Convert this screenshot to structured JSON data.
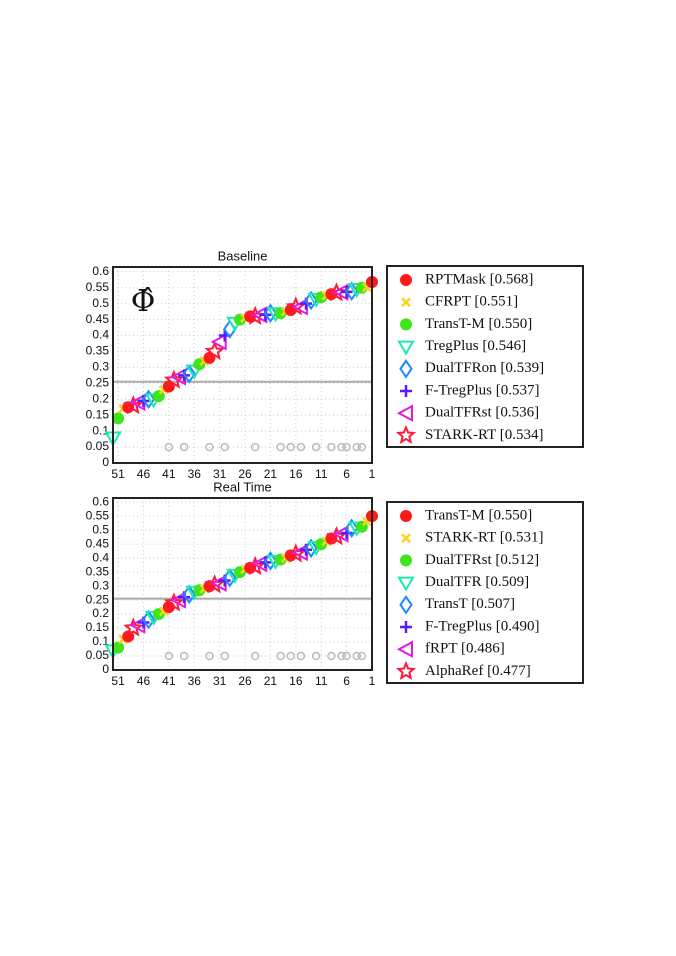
{
  "chart_data": [
    {
      "type": "scatter",
      "title": "Baseline",
      "annotation": "Φ̂",
      "x": [
        52,
        51,
        50,
        49,
        48,
        47,
        46,
        45,
        44,
        43,
        42,
        41,
        40,
        39,
        38,
        37,
        36,
        35,
        34,
        33,
        32,
        31,
        30,
        29,
        28,
        27,
        26,
        25,
        24,
        23,
        22,
        21,
        20,
        19,
        18,
        17,
        16,
        15,
        14,
        13,
        12,
        11,
        10,
        9,
        8,
        7,
        6,
        5,
        4,
        3,
        2,
        1
      ],
      "values": [
        0.08,
        0.14,
        0.17,
        0.175,
        0.18,
        0.19,
        0.195,
        0.2,
        0.2,
        0.21,
        0.23,
        0.24,
        0.26,
        0.27,
        0.275,
        0.28,
        0.29,
        0.31,
        0.32,
        0.33,
        0.35,
        0.38,
        0.4,
        0.42,
        0.44,
        0.45,
        0.455,
        0.46,
        0.46,
        0.465,
        0.465,
        0.47,
        0.47,
        0.47,
        0.475,
        0.48,
        0.49,
        0.49,
        0.5,
        0.51,
        0.515,
        0.52,
        0.525,
        0.53,
        0.534,
        0.536,
        0.537,
        0.539,
        0.546,
        0.55,
        0.551,
        0.568
      ],
      "colors": [
        "#ff1a1a",
        "#ffd21a",
        "#3de61a",
        "#1aeab0",
        "#1a8cff",
        "#5a1aff",
        "#e01ae0",
        "#ff1a3a"
      ],
      "legend": [
        {
          "name": "RPTMask [0.568]"
        },
        {
          "name": "CFRPT [0.551]"
        },
        {
          "name": "TransT-M [0.550]"
        },
        {
          "name": "TregPlus [0.546]"
        },
        {
          "name": "DualTFRon [0.539]"
        },
        {
          "name": "F-TregPlus [0.537]"
        },
        {
          "name": "DualTFRst [0.536]"
        },
        {
          "name": "STARK-RT [0.534]"
        }
      ],
      "threshold": 0.255,
      "gray_points": {
        "x": [
          41,
          38,
          33,
          30,
          24,
          19,
          17,
          15,
          12,
          9,
          7,
          6,
          4,
          3
        ],
        "values": [
          0.05,
          0.05,
          0.05,
          0.05,
          0.05,
          0.05,
          0.05,
          0.05,
          0.05,
          0.05,
          0.05,
          0.05,
          0.05,
          0.05
        ]
      },
      "xlim": [
        52,
        1
      ],
      "ylim": [
        0,
        0.615
      ],
      "xticks": [
        51,
        46,
        41,
        36,
        31,
        26,
        21,
        16,
        11,
        6,
        1
      ],
      "yticks": [
        0,
        0.05,
        0.1,
        0.15,
        0.2,
        0.25,
        0.3,
        0.35,
        0.4,
        0.45,
        0.5,
        0.55,
        0.6
      ],
      "grid": true
    },
    {
      "type": "scatter",
      "title": "Real Time",
      "x": [
        52,
        51,
        50,
        49,
        48,
        47,
        46,
        45,
        44,
        43,
        42,
        41,
        40,
        39,
        38,
        37,
        36,
        35,
        34,
        33,
        32,
        31,
        30,
        29,
        28,
        27,
        26,
        25,
        24,
        23,
        22,
        21,
        20,
        19,
        18,
        17,
        16,
        15,
        14,
        13,
        12,
        11,
        10,
        9,
        8,
        7,
        6,
        5,
        4,
        3,
        2,
        1
      ],
      "values": [
        0.07,
        0.08,
        0.11,
        0.12,
        0.15,
        0.16,
        0.17,
        0.18,
        0.19,
        0.2,
        0.21,
        0.225,
        0.24,
        0.25,
        0.26,
        0.27,
        0.28,
        0.285,
        0.29,
        0.3,
        0.305,
        0.31,
        0.32,
        0.33,
        0.34,
        0.35,
        0.36,
        0.365,
        0.37,
        0.38,
        0.385,
        0.39,
        0.39,
        0.395,
        0.4,
        0.41,
        0.415,
        0.42,
        0.43,
        0.435,
        0.44,
        0.45,
        0.46,
        0.47,
        0.477,
        0.486,
        0.49,
        0.507,
        0.509,
        0.512,
        0.531,
        0.55
      ],
      "colors": [
        "#ff1a1a",
        "#ffd21a",
        "#3de61a",
        "#1aeab0",
        "#1a8cff",
        "#5a1aff",
        "#e01ae0",
        "#ff1a3a"
      ],
      "legend": [
        {
          "name": "TransT-M [0.550]"
        },
        {
          "name": "STARK-RT [0.531]"
        },
        {
          "name": "DualTFRst [0.512]"
        },
        {
          "name": "DualTFR [0.509]"
        },
        {
          "name": "TransT [0.507]"
        },
        {
          "name": "F-TregPlus [0.490]"
        },
        {
          "name": "fRPT [0.486]"
        },
        {
          "name": "AlphaRef [0.477]"
        }
      ],
      "threshold": 0.255,
      "gray_points": {
        "x": [
          41,
          38,
          33,
          30,
          24,
          19,
          17,
          15,
          12,
          9,
          7,
          6,
          4,
          3
        ],
        "values": [
          0.05,
          0.05,
          0.05,
          0.05,
          0.05,
          0.05,
          0.05,
          0.05,
          0.05,
          0.05,
          0.05,
          0.05,
          0.05,
          0.05
        ]
      },
      "xlim": [
        52,
        1
      ],
      "ylim": [
        0,
        0.615
      ],
      "xticks": [
        51,
        46,
        41,
        36,
        31,
        26,
        21,
        16,
        11,
        6,
        1
      ],
      "yticks": [
        0,
        0.05,
        0.1,
        0.15,
        0.2,
        0.25,
        0.3,
        0.35,
        0.4,
        0.45,
        0.5,
        0.55,
        0.6
      ],
      "grid": true
    }
  ]
}
